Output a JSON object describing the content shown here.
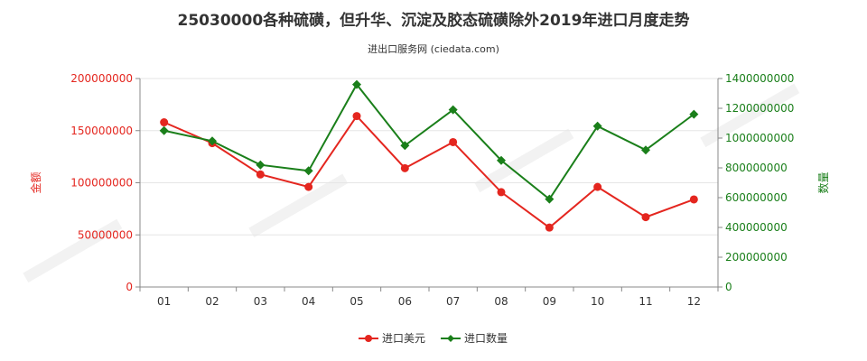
{
  "chart_data": {
    "type": "line",
    "title": "25030000各种硫磺，但升华、沉淀及胶态硫磺除外2019年进口月度走势",
    "subtitle": "进出口服务网 (ciedata.com)",
    "categories": [
      "01",
      "02",
      "03",
      "04",
      "05",
      "06",
      "07",
      "08",
      "09",
      "10",
      "11",
      "12"
    ],
    "y_left": {
      "label": "金额",
      "ylim": [
        0,
        200000000
      ],
      "ticks": [
        "0",
        "50000000",
        "100000000",
        "150000000",
        "200000000"
      ],
      "color": "#e4261f"
    },
    "y_right": {
      "label": "数量",
      "ylim": [
        0,
        1400000000
      ],
      "ticks": [
        "0",
        "200000000",
        "400000000",
        "600000000",
        "800000000",
        "1000000000",
        "1200000000",
        "1400000000"
      ],
      "color": "#1a7f1a"
    },
    "series": [
      {
        "name": "进口美元",
        "axis": "left",
        "color": "#e4261f",
        "values": [
          158000000,
          138000000,
          108000000,
          96000000,
          164000000,
          114000000,
          139000000,
          91000000,
          57000000,
          96000000,
          67000000,
          84000000
        ]
      },
      {
        "name": "进口数量",
        "axis": "right",
        "color": "#1a7f1a",
        "values": [
          1050000000,
          980000000,
          820000000,
          780000000,
          1360000000,
          950000000,
          1190000000,
          850000000,
          590000000,
          1080000000,
          920000000,
          1160000000
        ]
      }
    ],
    "grid": true,
    "legend": "bottom-center"
  }
}
